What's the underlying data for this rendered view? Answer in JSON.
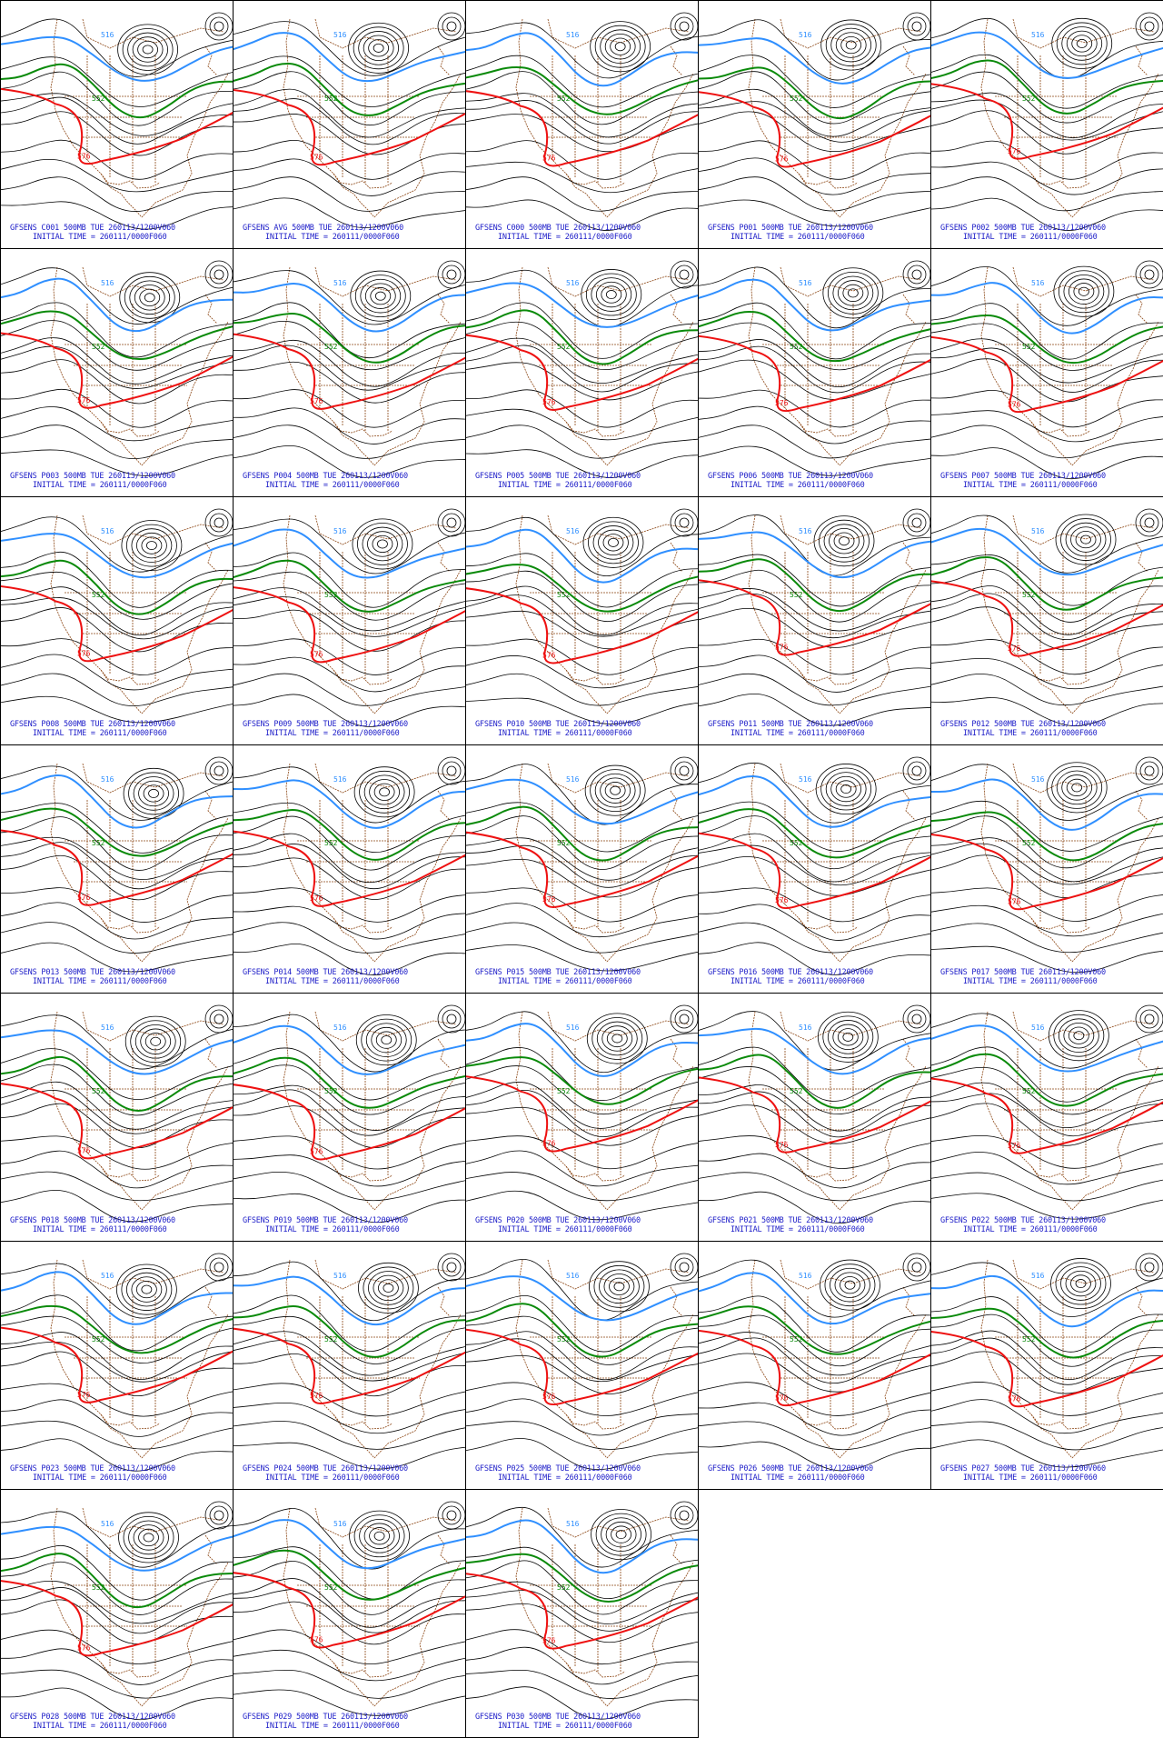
{
  "panels": [
    {
      "label": "GFSENS C001 500MB TUE 260113/1200V060",
      "init": "INITIAL TIME = 260111/0000F060",
      "red_label": "576",
      "blue_label": "516",
      "green_label": "552"
    },
    {
      "label": "GFSENS AVG 500MB TUE 260113/1200V060",
      "init": "INITIAL TIME = 260111/0000F060",
      "red_label": "576",
      "blue_label": "516",
      "green_label": "552"
    },
    {
      "label": "GFSENS C000 500MB TUE 260113/1200V060",
      "init": "INITIAL TIME = 260111/0000F060",
      "red_label": "576",
      "blue_label": "516",
      "green_label": "552"
    },
    {
      "label": "GFSENS P001 500MB TUE 260113/1200V060",
      "init": "INITIAL TIME = 260111/0000F060",
      "red_label": "576",
      "blue_label": "516",
      "green_label": "552"
    },
    {
      "label": "GFSENS P002 500MB TUE 260113/1200V060",
      "init": "INITIAL TIME = 260111/0000F060",
      "red_label": "576",
      "blue_label": "516",
      "green_label": "552"
    },
    {
      "label": "GFSENS P003 500MB TUE 260113/1200V060",
      "init": "INITIAL TIME = 260111/0000F060",
      "red_label": "576",
      "blue_label": "516",
      "green_label": "552"
    },
    {
      "label": "GFSENS P004 500MB TUE 260113/1200V060",
      "init": "INITIAL TIME = 260111/0000F060",
      "red_label": "576",
      "blue_label": "516",
      "green_label": "552"
    },
    {
      "label": "GFSENS P005 500MB TUE 260113/1200V060",
      "init": "INITIAL TIME = 260111/0000F060",
      "red_label": "576",
      "blue_label": "516",
      "green_label": "552"
    },
    {
      "label": "GFSENS P006 500MB TUE 260113/1200V060",
      "init": "INITIAL TIME = 260111/0000F060",
      "red_label": "576",
      "blue_label": "516",
      "green_label": "552"
    },
    {
      "label": "GFSENS P007 500MB TUE 260113/1200V060",
      "init": "INITIAL TIME = 260111/0000F060",
      "red_label": "576",
      "blue_label": "516",
      "green_label": "552"
    },
    {
      "label": "GFSENS P008 500MB TUE 260113/1200V060",
      "init": "INITIAL TIME = 260111/0000F060",
      "red_label": "576",
      "blue_label": "516",
      "green_label": "552"
    },
    {
      "label": "GFSENS P009 500MB TUE 260113/1200V060",
      "init": "INITIAL TIME = 260111/0000F060",
      "red_label": "576",
      "blue_label": "516",
      "green_label": "552"
    },
    {
      "label": "GFSENS P010 500MB TUE 260113/1200V060",
      "init": "INITIAL TIME = 260111/0000F060",
      "red_label": "576",
      "blue_label": "516",
      "green_label": "552"
    },
    {
      "label": "GFSENS P011 500MB TUE 260113/1200V060",
      "init": "INITIAL TIME = 260111/0000F060",
      "red_label": "576",
      "blue_label": "516",
      "green_label": "552"
    },
    {
      "label": "GFSENS P012 500MB TUE 260113/1200V060",
      "init": "INITIAL TIME = 260111/0000F060",
      "red_label": "576",
      "blue_label": "516",
      "green_label": "552"
    },
    {
      "label": "GFSENS P013 500MB TUE 260113/1200V060",
      "init": "INITIAL TIME = 260111/0000F060",
      "red_label": "576",
      "blue_label": "516",
      "green_label": "552"
    },
    {
      "label": "GFSENS P014 500MB TUE 260113/1200V060",
      "init": "INITIAL TIME = 260111/0000F060",
      "red_label": "576",
      "blue_label": "516",
      "green_label": "552"
    },
    {
      "label": "GFSENS P015 500MB TUE 260113/1200V060",
      "init": "INITIAL TIME = 260111/0000F060",
      "red_label": "576",
      "blue_label": "516",
      "green_label": "552"
    },
    {
      "label": "GFSENS P016 500MB TUE 260113/1200V060",
      "init": "INITIAL TIME = 260111/0000F060",
      "red_label": "576",
      "blue_label": "516",
      "green_label": "552"
    },
    {
      "label": "GFSENS P017 500MB TUE 260113/1200V060",
      "init": "INITIAL TIME = 260111/0000F060",
      "red_label": "576",
      "blue_label": "516",
      "green_label": "552"
    },
    {
      "label": "GFSENS P018 500MB TUE 260113/1200V060",
      "init": "INITIAL TIME = 260111/0000F060",
      "red_label": "576",
      "blue_label": "516",
      "green_label": "552"
    },
    {
      "label": "GFSENS P019 500MB TUE 260113/1200V060",
      "init": "INITIAL TIME = 260111/0000F060",
      "red_label": "576",
      "blue_label": "516",
      "green_label": "552"
    },
    {
      "label": "GFSENS P020 500MB TUE 260113/1200V060",
      "init": "INITIAL TIME = 260111/0000F060",
      "red_label": "576",
      "blue_label": "516",
      "green_label": "552"
    },
    {
      "label": "GFSENS P021 500MB TUE 260113/1200V060",
      "init": "INITIAL TIME = 260111/0000F060",
      "red_label": "576",
      "blue_label": "516",
      "green_label": "552"
    },
    {
      "label": "GFSENS P022 500MB TUE 260113/1200V060",
      "init": "INITIAL TIME = 260111/0000F060",
      "red_label": "576",
      "blue_label": "516",
      "green_label": "552"
    },
    {
      "label": "GFSENS P023 500MB TUE 260113/1200V060",
      "init": "INITIAL TIME = 260111/0000F060",
      "red_label": "576",
      "blue_label": "516",
      "green_label": "552"
    },
    {
      "label": "GFSENS P024 500MB TUE 260113/1200V060",
      "init": "INITIAL TIME = 260111/0000F060",
      "red_label": "576",
      "blue_label": "516",
      "green_label": "552"
    },
    {
      "label": "GFSENS P025 500MB TUE 260113/1200V060",
      "init": "INITIAL TIME = 260111/0000F060",
      "red_label": "576",
      "blue_label": "516",
      "green_label": "552"
    },
    {
      "label": "GFSENS P026 500MB TUE 260113/1200V060",
      "init": "INITIAL TIME = 260111/0000F060",
      "red_label": "576",
      "blue_label": "516",
      "green_label": "552"
    },
    {
      "label": "GFSENS P027 500MB TUE 260113/1200V060",
      "init": "INITIAL TIME = 260111/0000F060",
      "red_label": "576",
      "blue_label": "516",
      "green_label": "552"
    },
    {
      "label": "GFSENS P028 500MB TUE 260113/1200V060",
      "init": "INITIAL TIME = 260111/0000F060",
      "red_label": "576",
      "blue_label": "516",
      "green_label": "552"
    },
    {
      "label": "GFSENS P029 500MB TUE 260113/1200V060",
      "init": "INITIAL TIME = 260111/0000F060",
      "red_label": "576",
      "blue_label": "516",
      "green_label": "552"
    },
    {
      "label": "GFSENS P030 500MB TUE 260113/1200V060",
      "init": "INITIAL TIME = 260111/0000F060",
      "red_label": "576",
      "blue_label": "516",
      "green_label": "552"
    }
  ],
  "colors": {
    "caption": "#1c1cc8",
    "contour": "#000000",
    "coast": "#8b4513",
    "line_516": "#2f8fff",
    "line_552": "#0a8a0a",
    "line_576": "#ee1111"
  }
}
